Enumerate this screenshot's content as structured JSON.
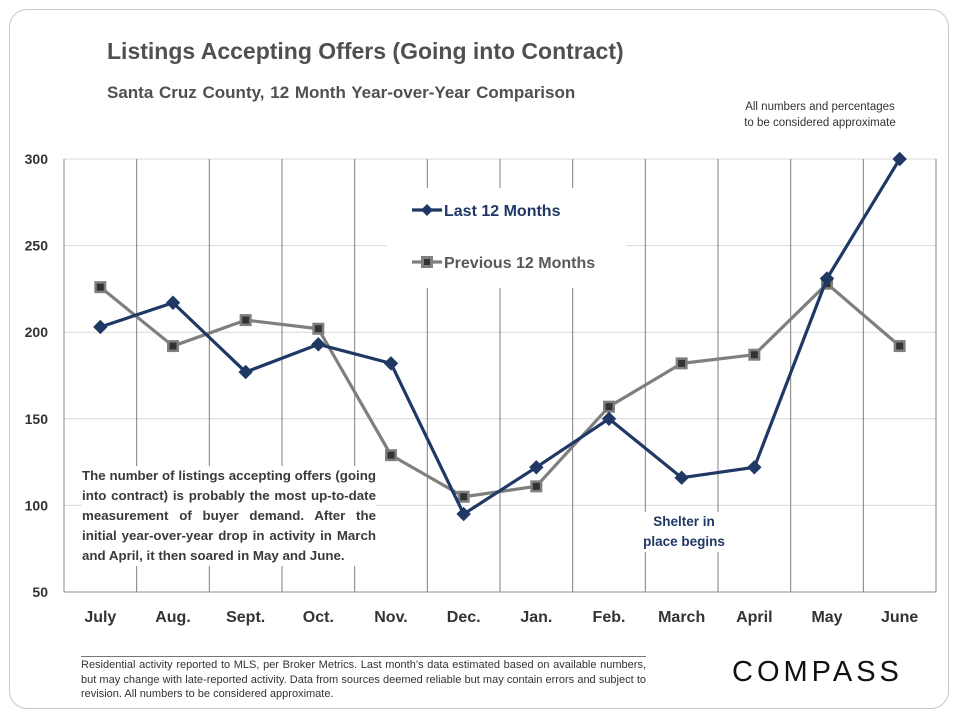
{
  "header": {
    "title": "Listings Accepting Offers (Going into Contract)",
    "subtitle": "Santa Cruz County, 12 Month Year-over-Year Comparison",
    "approx_note": [
      "All numbers and percentages",
      "to be considered approximate"
    ]
  },
  "chart_data": {
    "type": "line",
    "categories": [
      "July",
      "Aug.",
      "Sept.",
      "Oct.",
      "Nov.",
      "Dec.",
      "Jan.",
      "Feb.",
      "March",
      "April",
      "May",
      "June"
    ],
    "ylim": [
      50,
      300
    ],
    "yticks": [
      50,
      100,
      150,
      200,
      250,
      300
    ],
    "grid": {
      "horizontal": true,
      "vertical": true
    },
    "legend_position": "top-center",
    "series": [
      {
        "name": "Last 12 Months",
        "color": "#1f3864",
        "marker": "diamond",
        "values": [
          203,
          217,
          177,
          193,
          182,
          95,
          122,
          150,
          116,
          122,
          231,
          300
        ]
      },
      {
        "name": "Previous 12 Months",
        "color": "#7f7f7f",
        "marker": "square",
        "values": [
          226,
          192,
          207,
          202,
          129,
          105,
          111,
          157,
          182,
          187,
          228,
          192
        ]
      }
    ]
  },
  "annotations": {
    "note": "The number of listings accepting offers (going into contract) is probably the most up-to-date measurement of buyer demand. After the initial year-over-year drop in activity in March and April, it then soared in May and June.",
    "shelter": [
      "Shelter in",
      "place  begins"
    ]
  },
  "footer": {
    "disclaimer": "Residential activity reported to MLS, per Broker Metrics. Last month’s data estimated based on available numbers, but may change with late-reported activity. Data from sources deemed reliable but may contain errors and subject to revision. All numbers to be considered approximate.",
    "logo": "COMPASS"
  }
}
